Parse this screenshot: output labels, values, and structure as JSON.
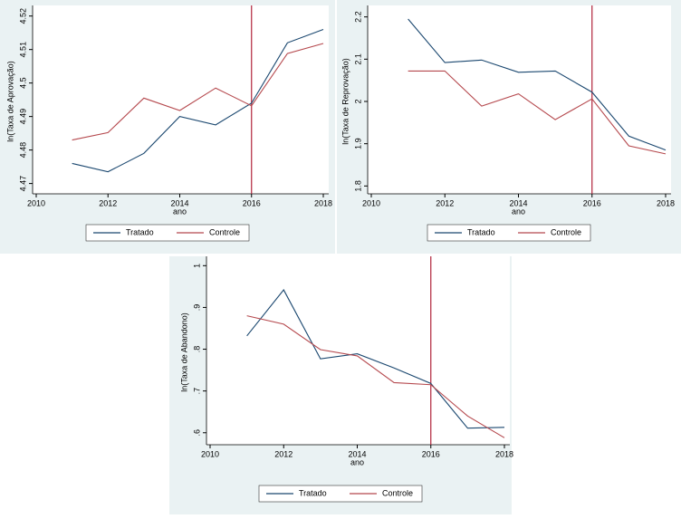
{
  "chart_data": [
    {
      "type": "line",
      "x": [
        2011,
        2012,
        2013,
        2014,
        2015,
        2016,
        2017,
        2018
      ],
      "xlabel": "ano",
      "ylabel": "ln(Taxa de Aprovação)",
      "xlim": [
        2010,
        2018
      ],
      "xticks": [
        2010,
        2012,
        2014,
        2016,
        2018
      ],
      "ylim": [
        4.468,
        4.521
      ],
      "yticks": [
        4.47,
        4.48,
        4.49,
        4.5,
        4.51,
        4.52
      ],
      "xline": 2016,
      "xline_color": "#b0243a",
      "series": [
        {
          "name": "Tratado",
          "color": "#1a476f",
          "values": [
            4.476,
            4.4735,
            4.479,
            4.49,
            4.4875,
            4.494,
            4.512,
            4.516
          ]
        },
        {
          "name": "Controle",
          "color": "#b5484d",
          "values": [
            4.483,
            4.4852,
            4.4955,
            4.4918,
            4.4985,
            4.4932,
            4.5088,
            4.5118
          ]
        }
      ]
    },
    {
      "type": "line",
      "x": [
        2011,
        2012,
        2013,
        2014,
        2015,
        2016,
        2017,
        2018
      ],
      "xlabel": "ano",
      "ylabel": "ln(Taxa de Reprovação)",
      "xlim": [
        2010,
        2018
      ],
      "xticks": [
        2010,
        2012,
        2014,
        2016,
        2018
      ],
      "ylim": [
        1.79,
        2.21
      ],
      "yticks": [
        1.8,
        1.9,
        2,
        2.1,
        2.2
      ],
      "xline": 2016,
      "xline_color": "#b0243a",
      "series": [
        {
          "name": "Tratado",
          "color": "#1a476f",
          "values": [
            2.195,
            2.092,
            2.098,
            2.069,
            2.072,
            2.022,
            1.918,
            1.885
          ]
        },
        {
          "name": "Controle",
          "color": "#b5484d",
          "values": [
            2.072,
            2.072,
            1.989,
            2.018,
            1.957,
            2.006,
            1.895,
            1.876
          ]
        }
      ]
    },
    {
      "type": "line",
      "x": [
        2011,
        2012,
        2013,
        2014,
        2015,
        2016,
        2017,
        2018
      ],
      "xlabel": "ano",
      "ylabel": "ln(Taxa de Abandono)",
      "xlim": [
        2010,
        2018
      ],
      "xticks": [
        2010,
        2012,
        2014,
        2016,
        2018
      ],
      "ylim": [
        0.58,
        1.005
      ],
      "yticks": [
        {
          "value": 0.6,
          "label": ".6"
        },
        {
          "value": 0.7,
          "label": ".7"
        },
        {
          "value": 0.8,
          "label": ".8"
        },
        {
          "value": 0.9,
          "label": ".9"
        },
        1
      ],
      "xline": 2016,
      "xline_color": "#b0243a",
      "series": [
        {
          "name": "Tratado",
          "color": "#1a476f",
          "values": [
            0.832,
            0.942,
            0.777,
            0.789,
            0.755,
            0.718,
            0.611,
            0.613
          ]
        },
        {
          "name": "Controle",
          "color": "#b5484d",
          "values": [
            0.88,
            0.86,
            0.799,
            0.784,
            0.72,
            0.715,
            0.64,
            0.588
          ]
        }
      ]
    }
  ]
}
